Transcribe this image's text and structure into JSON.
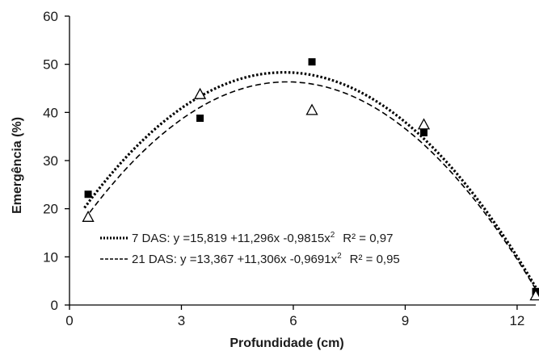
{
  "chart_data": {
    "type": "scatter",
    "xlabel": "Profundidade (cm)",
    "ylabel": "Emergência (%)",
    "xlim": [
      0,
      12.5
    ],
    "ylim": [
      0,
      60
    ],
    "x_ticks": [
      0,
      3,
      6,
      9,
      12
    ],
    "y_ticks": [
      0,
      10,
      20,
      30,
      40,
      50,
      60
    ],
    "grid": false,
    "series": [
      {
        "name": "7 DAS",
        "marker": "filled-square",
        "color": "#000000",
        "x": [
          0.5,
          3.5,
          6.5,
          9.5,
          12.5
        ],
        "y": [
          23,
          38.8,
          50.5,
          35.8,
          2.8
        ],
        "fit": {
          "a": 15.819,
          "b": 11.296,
          "c": -0.9815,
          "line": "dotted"
        },
        "equation": "7 DAS: y =15,819 +11,296x -0,9815x",
        "r2": "R² = 0,97"
      },
      {
        "name": "21 DAS",
        "marker": "open-triangle",
        "color": "#000000",
        "x": [
          0.5,
          3.5,
          6.5,
          9.5,
          12.5
        ],
        "y": [
          18.3,
          43.8,
          40.5,
          37.5,
          2
        ],
        "fit": {
          "a": 13.367,
          "b": 11.306,
          "c": -0.9691,
          "line": "dashed"
        },
        "equation": "21 DAS: y =13,367 +11,306x -0,9691x",
        "r2": "R² = 0,95"
      }
    ]
  }
}
